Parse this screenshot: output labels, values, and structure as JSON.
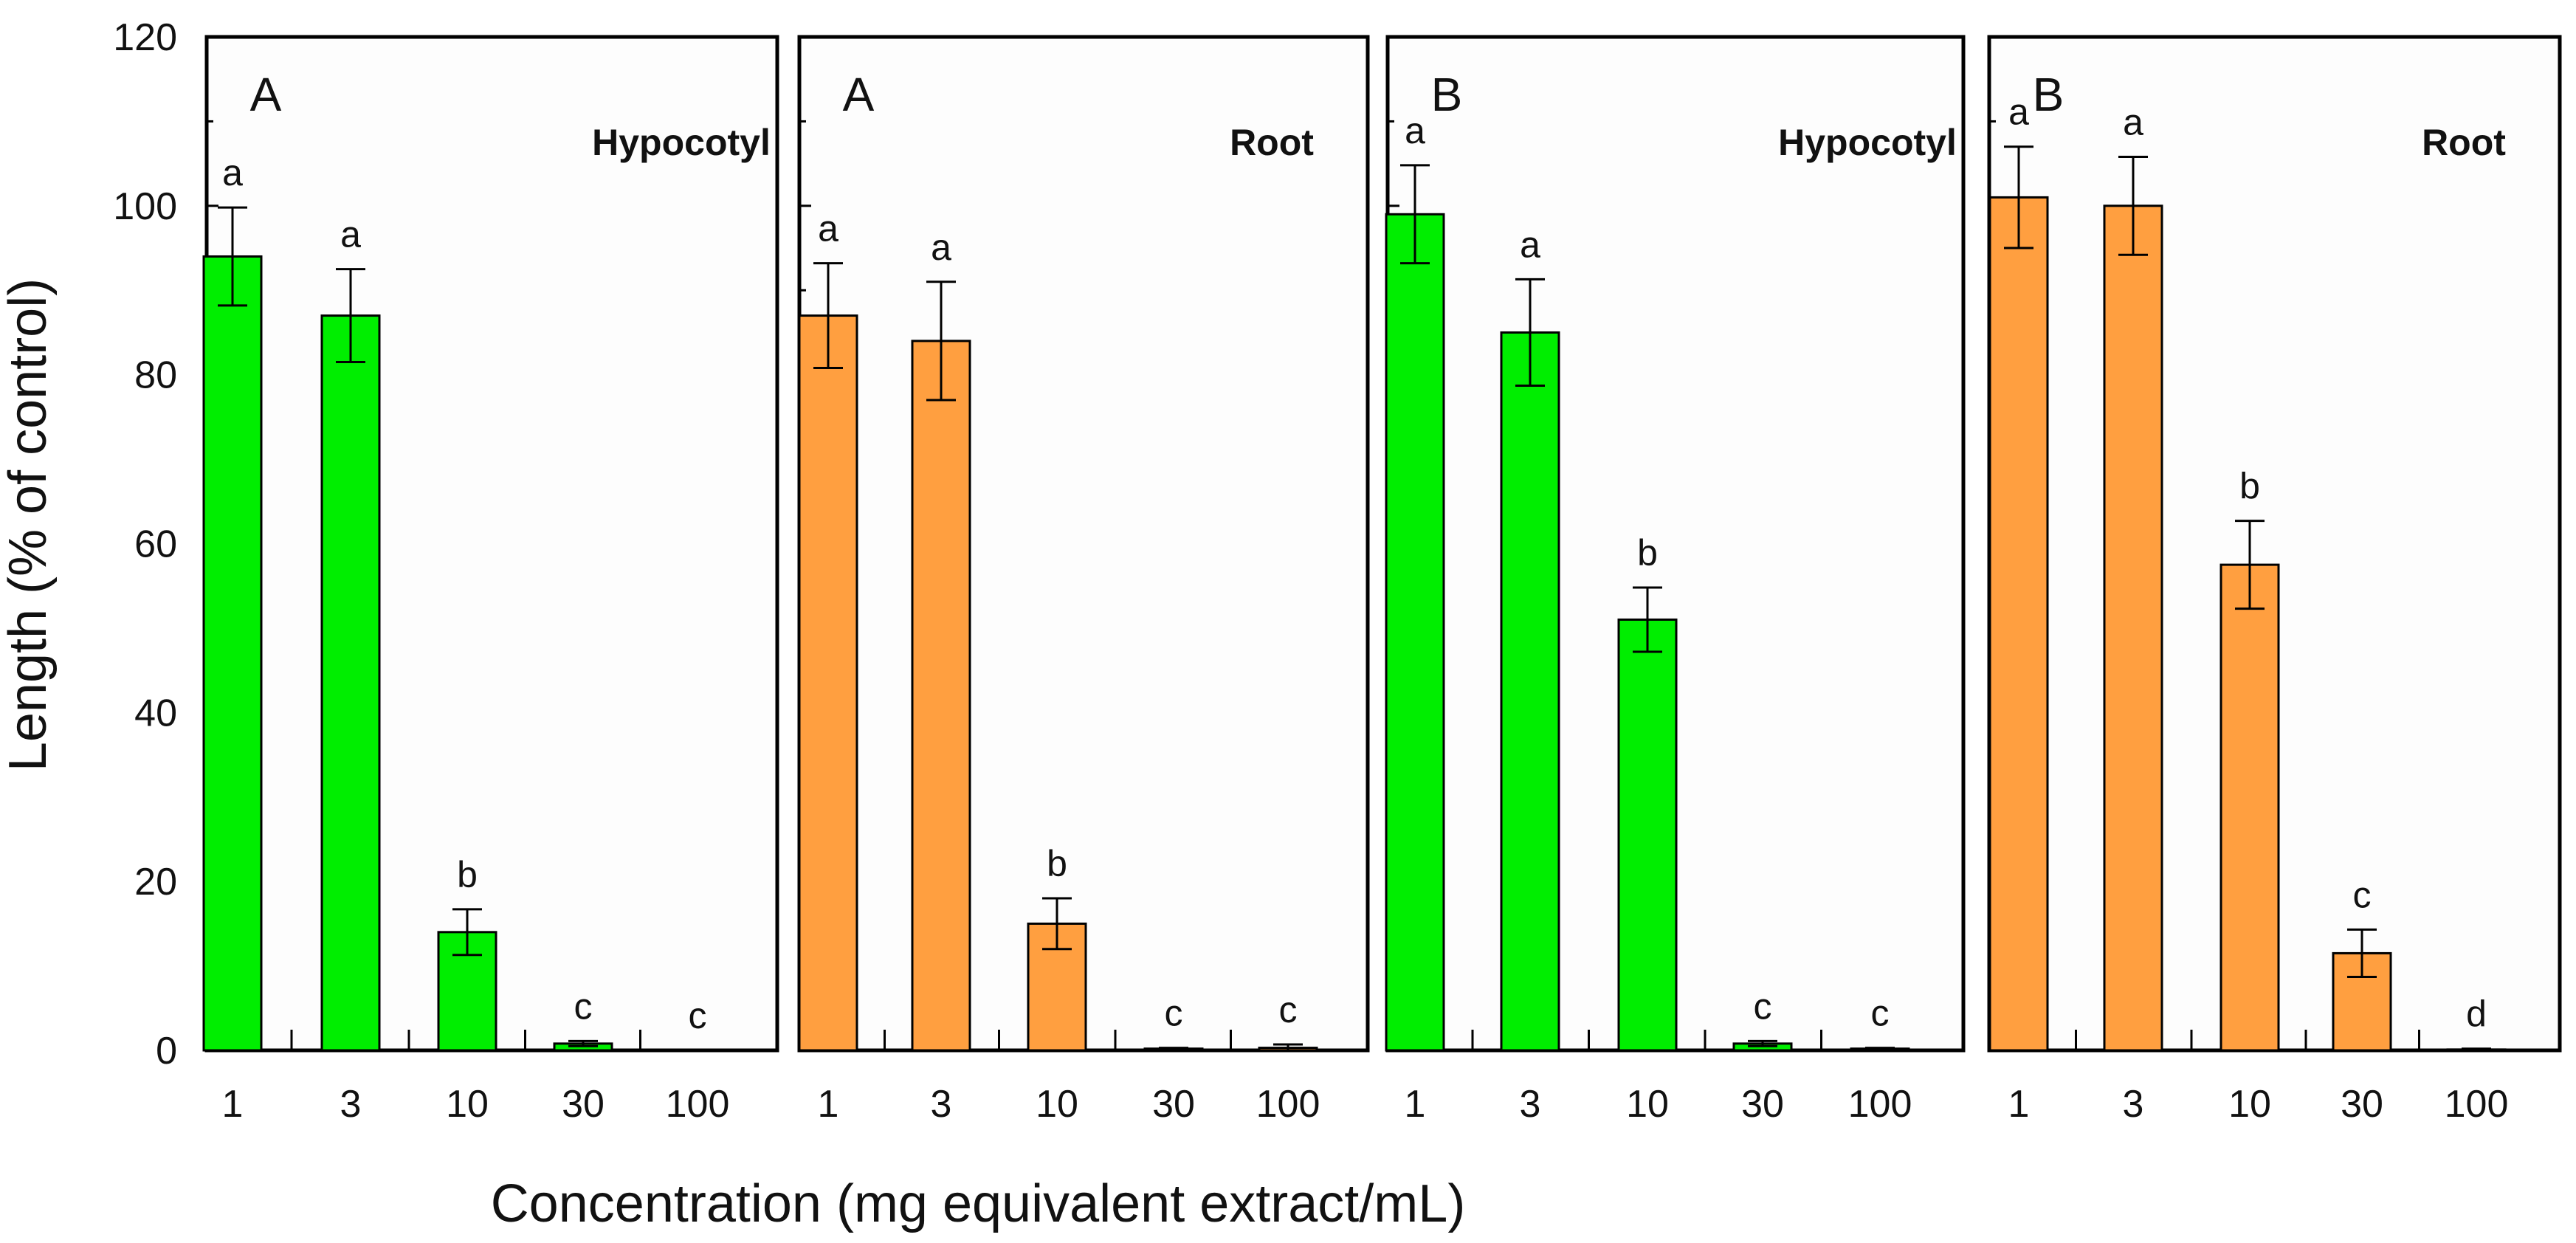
{
  "chart_data": {
    "type": "bar",
    "ylabel": "Length  (% of control)",
    "xlabel": "Concentration (mg equivalent extract/mL)",
    "ylim": [
      0,
      120
    ],
    "yticks": [
      "0",
      "20",
      "40",
      "60",
      "80",
      "100",
      "120"
    ],
    "categories": [
      "1",
      "3",
      "10",
      "30",
      "100"
    ],
    "colors": {
      "hypocotyl": "#00ee00",
      "root": "#ff9f40"
    },
    "panels": [
      {
        "letter": "A",
        "title": "Hypocotyl",
        "color_key": "hypocotyl",
        "values": [
          94,
          87,
          14,
          0.8,
          0
        ],
        "errors": [
          5.8,
          5.5,
          2.7,
          0.3,
          0
        ],
        "significance": [
          "a",
          "a",
          "b",
          "c",
          "c"
        ]
      },
      {
        "letter": "A",
        "title": "Root",
        "color_key": "root",
        "values": [
          87,
          84,
          15,
          0.2,
          0.3
        ],
        "errors": [
          6.2,
          7,
          3,
          0.1,
          0.4
        ],
        "significance": [
          "a",
          "a",
          "b",
          "c",
          "c"
        ]
      },
      {
        "letter": "B",
        "title": "Hypocotyl",
        "color_key": "hypocotyl",
        "values": [
          99,
          85,
          51,
          0.8,
          0.2
        ],
        "errors": [
          5.8,
          6.3,
          3.8,
          0.3,
          0.1
        ],
        "significance": [
          "a",
          "a",
          "b",
          "c",
          "c"
        ]
      },
      {
        "letter": "B",
        "title": "Root",
        "color_key": "root",
        "values": [
          101,
          100,
          57.5,
          11.5,
          0.1
        ],
        "errors": [
          6,
          5.8,
          5.2,
          2.8,
          0.1
        ],
        "significance": [
          "a",
          "a",
          "b",
          "c",
          "d"
        ]
      }
    ]
  }
}
